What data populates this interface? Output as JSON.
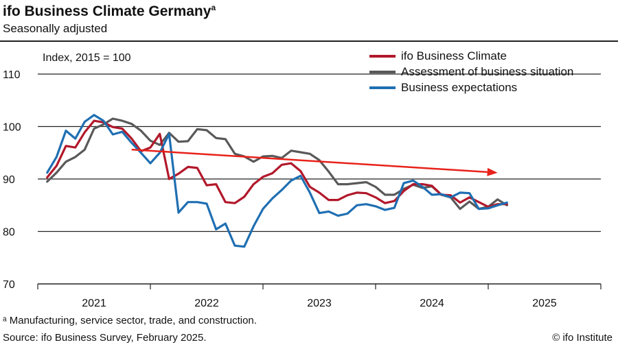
{
  "header": {
    "title": "ifo Business Climate Germany",
    "title_sup": "a",
    "subtitle": "Seasonally adjusted"
  },
  "index_label": "Index, 2015 = 100",
  "footnote": "ᵃ Manufacturing, service sector, trade, and construction.",
  "source": "Source: ifo Business Survey, February 2025.",
  "credit": "© ifo Institute",
  "colors": {
    "climate": "#b2182b",
    "situation": "#595959",
    "expectations": "#1f6fb2",
    "trend_arrow": "#e8211a"
  },
  "chart_data": {
    "type": "line",
    "ylim": [
      70,
      110
    ],
    "yticks": [
      70,
      80,
      90,
      100,
      110
    ],
    "xlim": [
      "2020-12",
      "2025-12"
    ],
    "xtick_labels": [
      "2021",
      "2022",
      "2023",
      "2024",
      "2025"
    ],
    "x": [
      "2021-01",
      "2021-02",
      "2021-03",
      "2021-04",
      "2021-05",
      "2021-06",
      "2021-07",
      "2021-08",
      "2021-09",
      "2021-10",
      "2021-11",
      "2021-12",
      "2022-01",
      "2022-02",
      "2022-03",
      "2022-04",
      "2022-05",
      "2022-06",
      "2022-07",
      "2022-08",
      "2022-09",
      "2022-10",
      "2022-11",
      "2022-12",
      "2023-01",
      "2023-02",
      "2023-03",
      "2023-04",
      "2023-05",
      "2023-06",
      "2023-07",
      "2023-08",
      "2023-09",
      "2023-10",
      "2023-11",
      "2023-12",
      "2024-01",
      "2024-02",
      "2024-03",
      "2024-04",
      "2024-05",
      "2024-06",
      "2024-07",
      "2024-08",
      "2024-09",
      "2024-10",
      "2024-11",
      "2024-12",
      "2025-01",
      "2025-02"
    ],
    "series": [
      {
        "name": "ifo Business Climate",
        "color_key": "climate",
        "values": [
          90.3,
          92.5,
          96.3,
          96.0,
          98.9,
          101.1,
          100.8,
          99.9,
          99.6,
          97.7,
          95.3,
          96.0,
          98.6,
          90.0,
          91.0,
          92.3,
          92.1,
          88.8,
          89.0,
          85.6,
          85.4,
          86.6,
          89.0,
          90.4,
          91.1,
          92.7,
          93.0,
          91.5,
          88.5,
          87.4,
          86.0,
          86.0,
          86.9,
          87.4,
          87.3,
          86.5,
          85.4,
          85.8,
          87.7,
          89.0,
          89.0,
          88.7,
          87.0,
          86.9,
          85.5,
          86.5,
          85.6,
          84.7,
          85.2,
          85.2
        ]
      },
      {
        "name": "Assessment of business situation",
        "color_key": "situation",
        "values": [
          89.5,
          91.2,
          93.3,
          94.2,
          95.6,
          99.6,
          100.4,
          101.5,
          101.1,
          100.5,
          99.2,
          97.3,
          96.5,
          98.8,
          97.1,
          97.2,
          99.5,
          99.3,
          97.8,
          97.6,
          94.8,
          94.3,
          93.3,
          94.3,
          94.4,
          94.0,
          95.4,
          95.1,
          94.8,
          93.6,
          91.4,
          89.0,
          89.0,
          89.2,
          89.4,
          88.5,
          87.0,
          87.0,
          88.1,
          88.9,
          88.3,
          88.6,
          87.0,
          86.5,
          84.3,
          85.7,
          84.3,
          84.7,
          86.1,
          85.0
        ]
      },
      {
        "name": "Business expectations",
        "color_key": "expectations",
        "values": [
          91.2,
          94.2,
          99.2,
          97.7,
          100.9,
          102.2,
          101.1,
          98.5,
          99.0,
          96.9,
          95.0,
          93.0,
          95.0,
          98.6,
          83.6,
          85.6,
          85.6,
          85.3,
          80.4,
          81.5,
          77.3,
          77.1,
          81.0,
          84.3,
          86.3,
          87.9,
          89.7,
          90.6,
          87.4,
          83.5,
          83.8,
          83.0,
          83.4,
          85.0,
          85.2,
          84.8,
          84.1,
          84.5,
          89.2,
          89.7,
          88.5,
          87.0,
          87.1,
          86.5,
          87.4,
          87.3,
          84.3,
          84.4,
          85.0,
          85.5
        ]
      }
    ],
    "grid": "horizontal",
    "legend_position": "top-right",
    "annotations": [
      {
        "type": "arrow",
        "from": {
          "x": "2021-10",
          "y": 95.6
        },
        "to": {
          "x": "2025-01",
          "y": 91.2
        },
        "color_key": "trend_arrow"
      }
    ]
  }
}
